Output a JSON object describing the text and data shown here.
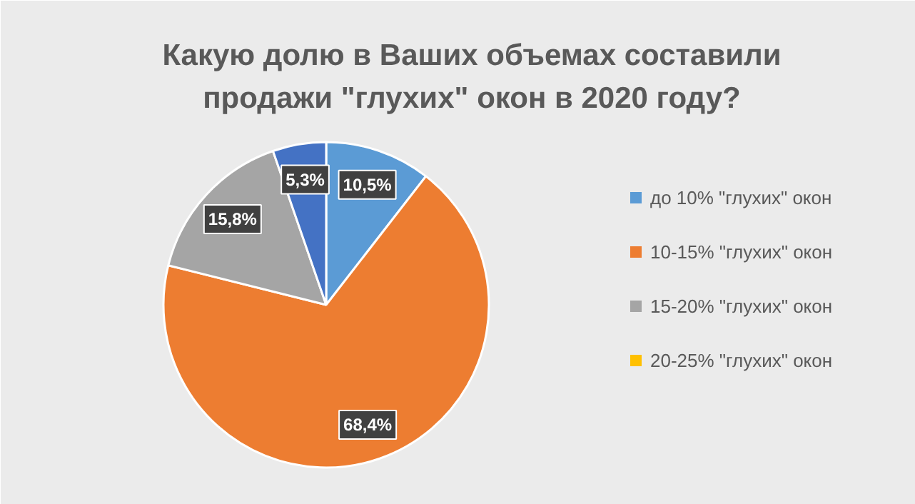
{
  "chart_data": {
    "type": "pie",
    "title": "Какую долю в Ваших объемах составили\nпродажи \"глухих\" окон в 2020 году?",
    "categories": [
      "до 10% \"глухих\" окон",
      "10-15% \"глухих\" окон",
      "15-20% \"глухих\" окон",
      "20-25% \"глухих\" окон",
      null
    ],
    "values": [
      10.5,
      68.4,
      15.8,
      0,
      5.3
    ],
    "colors": [
      "#5b9bd5",
      "#ed7d31",
      "#a5a5a5",
      "#ffc000",
      "#4472c4"
    ],
    "value_labels": [
      "10,5%",
      "68,4%",
      "15,8%",
      null,
      "5,3%"
    ],
    "legend": "right"
  }
}
